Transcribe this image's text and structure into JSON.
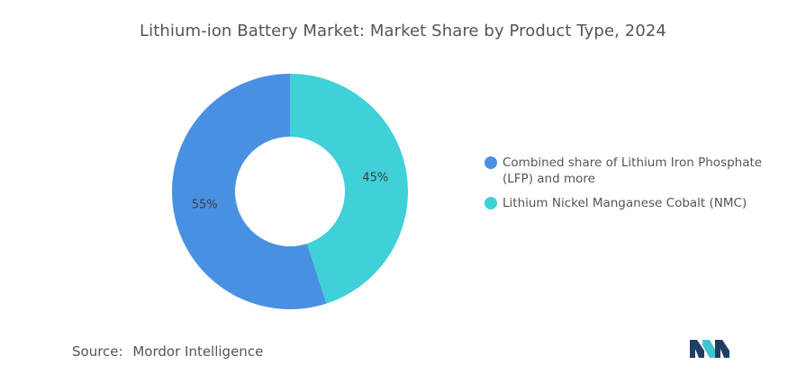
{
  "chart_data": {
    "type": "pie",
    "title": "Lithium-ion Battery Market: Market Share by Product Type, 2024",
    "donut": true,
    "categories": [
      "Combined share of Lithium Iron Phosphate (LFP) and more",
      "Lithium Nickel Manganese Cobalt (NMC)"
    ],
    "values": [
      55,
      45
    ],
    "value_labels": [
      "55%",
      "45%"
    ],
    "colors": [
      "#4a90e2",
      "#3fd0d8"
    ],
    "legend_position": "right"
  },
  "legend": {
    "items": [
      {
        "line1": "Combined share of Lithium Iron Phosphate",
        "line2": "(LFP) and more",
        "color": "#4a90e2"
      },
      {
        "line1": "Lithium Nickel Manganese Cobalt (NMC)",
        "line2": "",
        "color": "#3fd0d8"
      }
    ]
  },
  "source": {
    "prefix": "Source:",
    "name": "Mordor Intelligence"
  },
  "logo": {
    "icon": "mordor-intelligence-logo-icon",
    "color_dark": "#1f3e63",
    "color_light": "#3fc6cf"
  }
}
